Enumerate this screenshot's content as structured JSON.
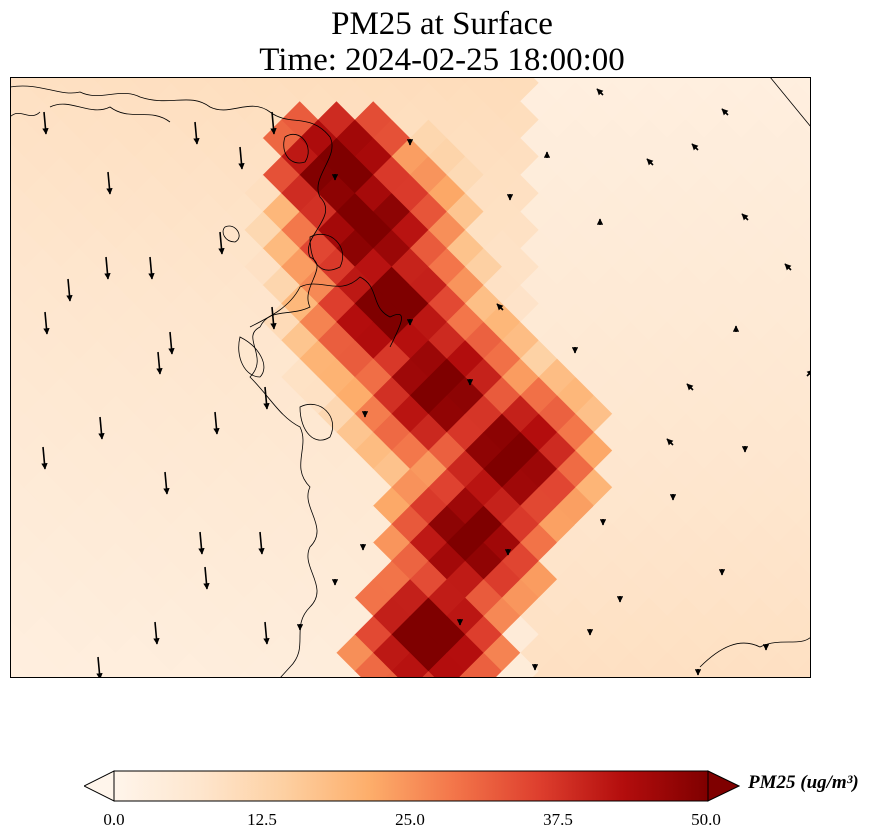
{
  "title": {
    "line1": "PM25 at Surface",
    "line2": "Time: 2024-02-25 18:00:00"
  },
  "colorbar": {
    "label": "PM25 (ug/m³)",
    "ticks": [
      "0.0",
      "12.5",
      "25.0",
      "37.5",
      "50.0"
    ],
    "range": [
      0,
      50
    ],
    "extend": "both",
    "colormap": [
      "#fff5eb",
      "#fee6ce",
      "#fdd0a2",
      "#fdae6b",
      "#f3764a",
      "#de3f2e",
      "#b30d0d",
      "#7f0000"
    ]
  },
  "map": {
    "field": "PM25",
    "units": "ug/m3",
    "colors": {
      "coastline": "#000000",
      "arrows": "#000000",
      "frame": "#000000"
    },
    "plume_max": "50.0+",
    "background_level": 12
  }
}
